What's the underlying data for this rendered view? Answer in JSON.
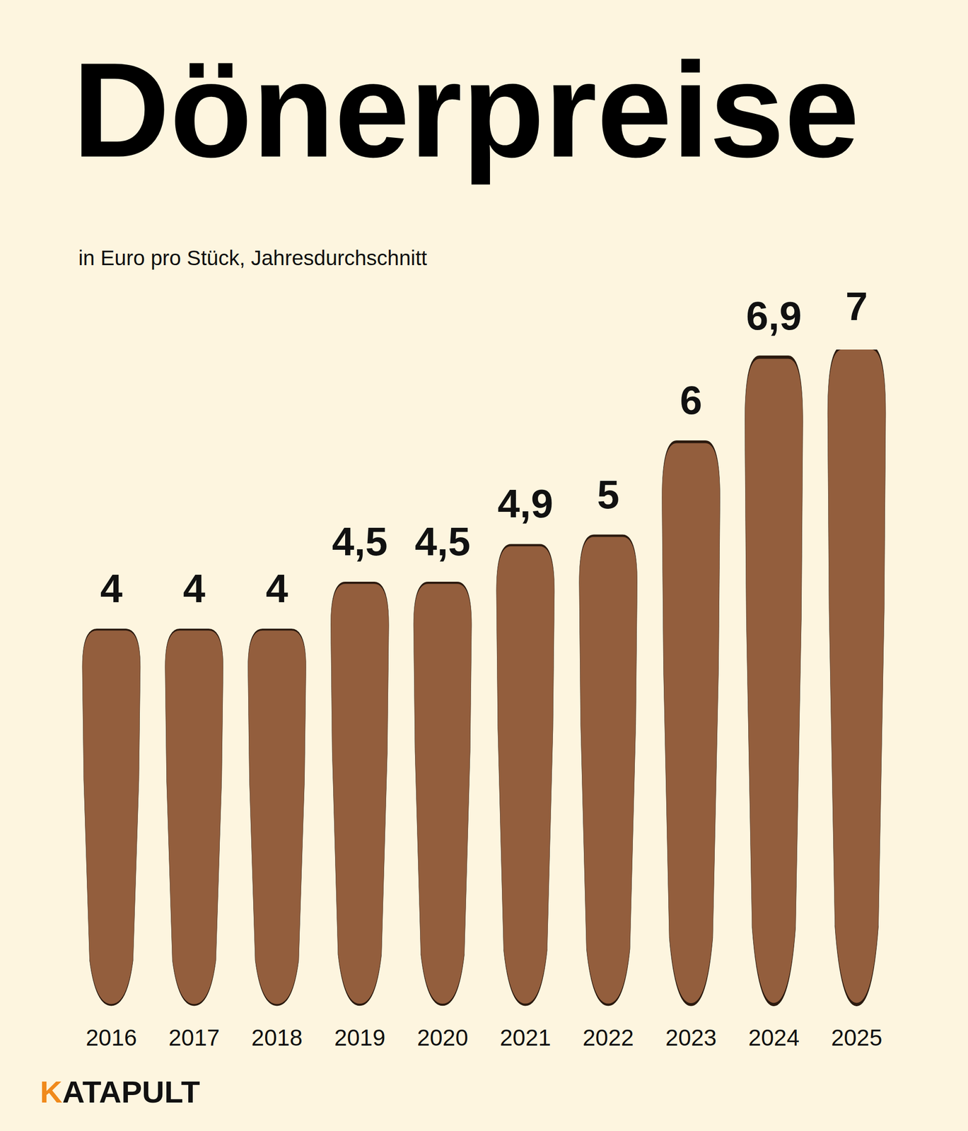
{
  "chart_data": {
    "type": "bar",
    "title": "Dönerpreise",
    "subtitle": "in Euro pro Stück, Jahresdurchschnitt",
    "categories": [
      "2016",
      "2017",
      "2018",
      "2019",
      "2020",
      "2021",
      "2022",
      "2023",
      "2024",
      "2025"
    ],
    "values": [
      4,
      4,
      4,
      4.5,
      4.5,
      4.9,
      5,
      6,
      6.9,
      7
    ],
    "value_labels": [
      "4",
      "4",
      "4",
      "4,5",
      "4,5",
      "4,9",
      "5",
      "6",
      "6,9",
      "7"
    ],
    "color": "#935e3d",
    "ylim": [
      0,
      7
    ],
    "data_labels": true,
    "tick_labels": "x",
    "grid": false,
    "source": "KATAPULT"
  }
}
